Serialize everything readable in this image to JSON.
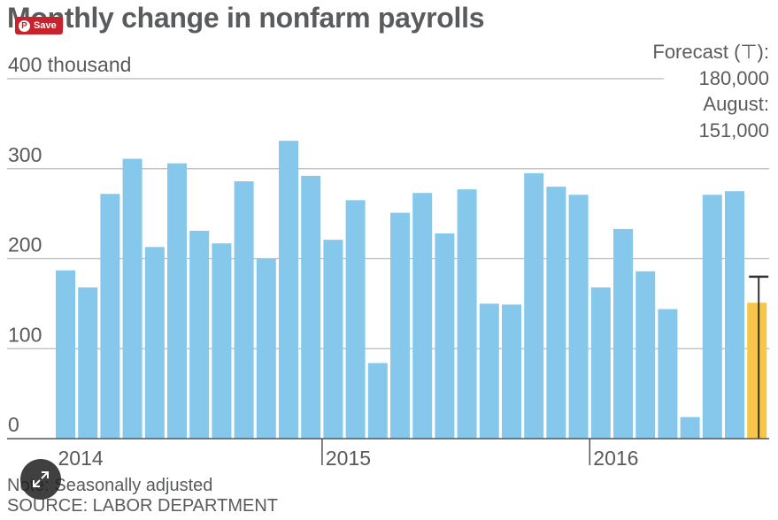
{
  "title": "Monthly change in nonfarm payrolls",
  "save_button": {
    "label": "Save",
    "icon": "pinterest-icon"
  },
  "forecast": {
    "line1": "Forecast (⊤):",
    "line2": "180,000",
    "line3": "August:",
    "line4": "151,000"
  },
  "note": "Note: Seasonally adjusted",
  "source": "SOURCE: LABOR DEPARTMENT",
  "expand_icon": "expand-icon",
  "colors": {
    "bar": "#86c8ec",
    "highlight": "#f7c548",
    "grid": "#b9b9b9",
    "axis": "#555555",
    "text": "#58595b"
  },
  "chart_data": {
    "type": "bar",
    "ylabel": "thousand",
    "ylim": [
      0,
      400
    ],
    "yticks": [
      {
        "value": 0,
        "label": "0"
      },
      {
        "value": 100,
        "label": "100"
      },
      {
        "value": 200,
        "label": "200"
      },
      {
        "value": 300,
        "label": "300"
      },
      {
        "value": 400,
        "label": "400 thousand"
      }
    ],
    "year_labels": [
      "2014",
      "2015",
      "2016"
    ],
    "values": [
      187,
      168,
      272,
      311,
      213,
      306,
      231,
      217,
      286,
      200,
      331,
      292,
      221,
      265,
      84,
      251,
      273,
      228,
      277,
      150,
      149,
      295,
      280,
      271,
      168,
      233,
      186,
      144,
      24,
      271,
      275,
      151
    ],
    "highlight_index": 31,
    "forecast_value": 180
  }
}
